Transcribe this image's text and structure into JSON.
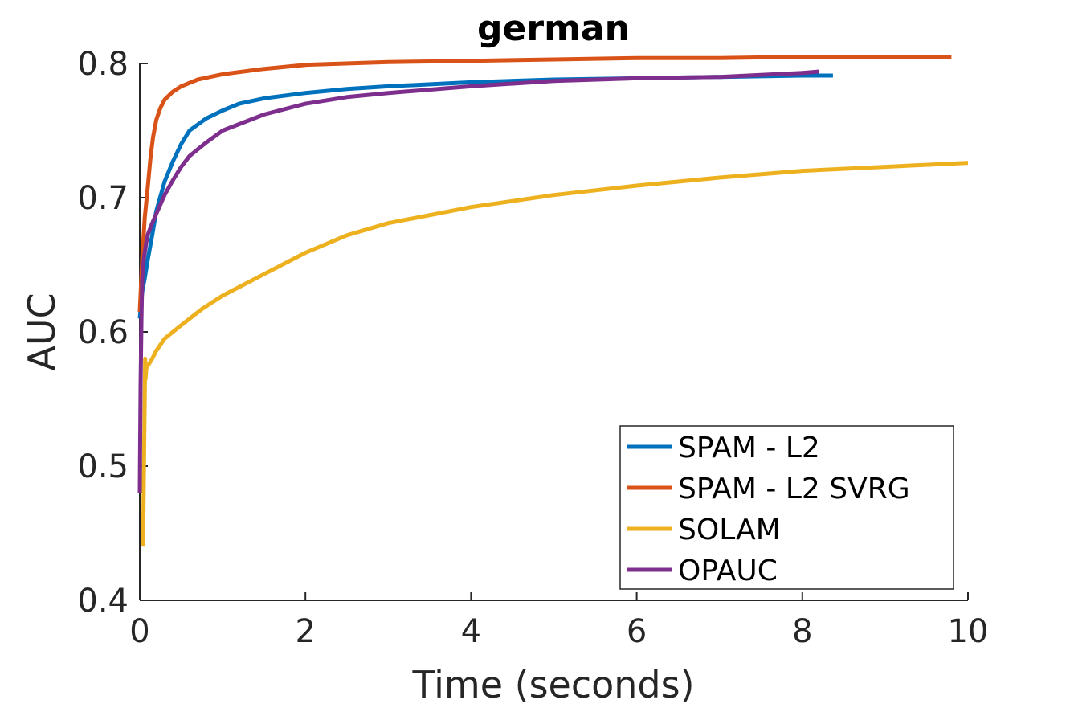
{
  "chart_data": {
    "type": "line",
    "title": "german",
    "xlabel": "Time (seconds)",
    "ylabel": "AUC",
    "xlim": [
      0,
      10
    ],
    "ylim": [
      0.4,
      0.8
    ],
    "xticks": [
      "0",
      "2",
      "4",
      "6",
      "8",
      "10"
    ],
    "yticks": [
      "0.4",
      "0.5",
      "0.6",
      "0.7",
      "0.8"
    ],
    "grid": false,
    "legend_position": "bottom-right",
    "series": [
      {
        "name": "SPAM - L2",
        "color": "#0072BD",
        "x": [
          0,
          0.03,
          0.06,
          0.1,
          0.15,
          0.2,
          0.3,
          0.4,
          0.5,
          0.6,
          0.8,
          1.0,
          1.2,
          1.5,
          2.0,
          2.5,
          3.0,
          4.0,
          5.0,
          6.0,
          7.0,
          8.0,
          8.37
        ],
        "y": [
          0.61,
          0.63,
          0.64,
          0.655,
          0.672,
          0.69,
          0.712,
          0.727,
          0.74,
          0.75,
          0.759,
          0.765,
          0.77,
          0.774,
          0.778,
          0.781,
          0.783,
          0.786,
          0.788,
          0.789,
          0.79,
          0.791,
          0.791
        ]
      },
      {
        "name": "SPAM - L2 SVRG",
        "color": "#D95319",
        "x": [
          0,
          0.03,
          0.06,
          0.1,
          0.13,
          0.16,
          0.2,
          0.25,
          0.3,
          0.4,
          0.5,
          0.7,
          1.0,
          1.5,
          2.0,
          3.0,
          4.0,
          5.0,
          6.0,
          7.0,
          8.0,
          9.0,
          9.8
        ],
        "y": [
          0.615,
          0.655,
          0.685,
          0.71,
          0.73,
          0.745,
          0.758,
          0.767,
          0.773,
          0.779,
          0.783,
          0.788,
          0.792,
          0.796,
          0.799,
          0.801,
          0.802,
          0.803,
          0.804,
          0.804,
          0.805,
          0.805,
          0.805
        ]
      },
      {
        "name": "SOLAM",
        "color": "#EDB120",
        "x": [
          0.04,
          0.05,
          0.06,
          0.065,
          0.07,
          0.08,
          0.1,
          0.15,
          0.2,
          0.3,
          0.5,
          0.75,
          1.0,
          1.5,
          2.0,
          2.5,
          3.0,
          4.0,
          5.0,
          6.0,
          7.0,
          8.0,
          9.0,
          10.0
        ],
        "y": [
          0.44,
          0.5,
          0.55,
          0.58,
          0.565,
          0.573,
          0.575,
          0.58,
          0.586,
          0.595,
          0.605,
          0.617,
          0.627,
          0.643,
          0.659,
          0.672,
          0.681,
          0.693,
          0.702,
          0.709,
          0.715,
          0.72,
          0.723,
          0.726
        ]
      },
      {
        "name": "OPAUC",
        "color": "#7E2F8E",
        "x": [
          0,
          0.01,
          0.02,
          0.03,
          0.05,
          0.08,
          0.1,
          0.15,
          0.2,
          0.3,
          0.4,
          0.5,
          0.6,
          0.8,
          1.0,
          1.5,
          2.0,
          2.5,
          3.0,
          4.0,
          5.0,
          6.0,
          7.0,
          8.0,
          8.2
        ],
        "y": [
          0.48,
          0.56,
          0.61,
          0.64,
          0.655,
          0.667,
          0.673,
          0.681,
          0.688,
          0.702,
          0.713,
          0.723,
          0.731,
          0.741,
          0.75,
          0.762,
          0.77,
          0.775,
          0.778,
          0.783,
          0.787,
          0.789,
          0.79,
          0.793,
          0.794
        ]
      }
    ]
  }
}
